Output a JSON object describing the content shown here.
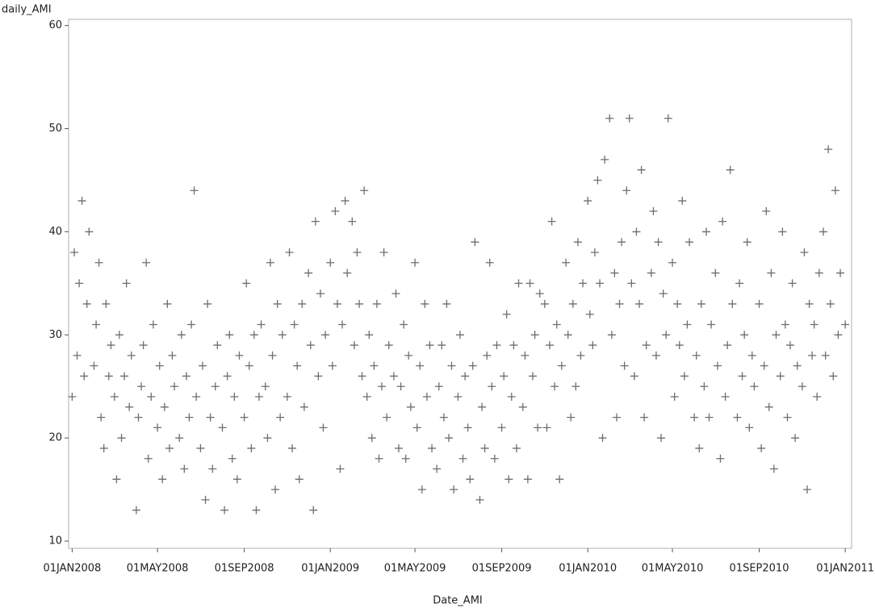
{
  "chart_data": {
    "type": "scatter",
    "ylabel": "daily_AMI",
    "xlabel": "Date_AMI",
    "color": "#6e6e6e",
    "marker": "plus",
    "xlim": [
      "2007-12-27",
      "2011-01-10"
    ],
    "xticks": [
      {
        "value": "2008-01-01",
        "label": "01JAN2008"
      },
      {
        "value": "2008-05-01",
        "label": "01MAY2008"
      },
      {
        "value": "2008-09-01",
        "label": "01SEP2008"
      },
      {
        "value": "2009-01-01",
        "label": "01JAN2009"
      },
      {
        "value": "2009-05-01",
        "label": "01MAY2009"
      },
      {
        "value": "2009-09-01",
        "label": "01SEP2009"
      },
      {
        "value": "2010-01-01",
        "label": "01JAN2010"
      },
      {
        "value": "2010-05-01",
        "label": "01MAY2010"
      },
      {
        "value": "2010-09-01",
        "label": "01SEP2010"
      },
      {
        "value": "2011-01-01",
        "label": "01JAN2011"
      }
    ],
    "ylim": [
      9.3,
      60.6
    ],
    "yticks": [
      10,
      20,
      30,
      40,
      50,
      60
    ],
    "x": [
      "2008-01-01",
      "2008-01-04",
      "2008-01-08",
      "2008-01-11",
      "2008-01-15",
      "2008-01-18",
      "2008-01-22",
      "2008-01-25",
      "2008-02-01",
      "2008-02-04",
      "2008-02-08",
      "2008-02-11",
      "2008-02-15",
      "2008-02-18",
      "2008-02-22",
      "2008-02-25",
      "2008-03-01",
      "2008-03-04",
      "2008-03-08",
      "2008-03-11",
      "2008-03-15",
      "2008-03-18",
      "2008-03-22",
      "2008-03-25",
      "2008-04-01",
      "2008-04-04",
      "2008-04-08",
      "2008-04-11",
      "2008-04-15",
      "2008-04-18",
      "2008-04-22",
      "2008-04-25",
      "2008-05-01",
      "2008-05-04",
      "2008-05-08",
      "2008-05-11",
      "2008-05-15",
      "2008-05-18",
      "2008-05-22",
      "2008-05-25",
      "2008-06-01",
      "2008-06-04",
      "2008-06-08",
      "2008-06-11",
      "2008-06-15",
      "2008-06-18",
      "2008-06-22",
      "2008-06-25",
      "2008-07-01",
      "2008-07-04",
      "2008-07-08",
      "2008-07-11",
      "2008-07-15",
      "2008-07-18",
      "2008-07-22",
      "2008-07-25",
      "2008-08-01",
      "2008-08-04",
      "2008-08-08",
      "2008-08-11",
      "2008-08-15",
      "2008-08-18",
      "2008-08-22",
      "2008-08-25",
      "2008-09-01",
      "2008-09-04",
      "2008-09-08",
      "2008-09-11",
      "2008-09-15",
      "2008-09-18",
      "2008-09-22",
      "2008-09-25",
      "2008-10-01",
      "2008-10-04",
      "2008-10-08",
      "2008-10-11",
      "2008-10-15",
      "2008-10-18",
      "2008-10-22",
      "2008-10-25",
      "2008-11-01",
      "2008-11-04",
      "2008-11-08",
      "2008-11-11",
      "2008-11-15",
      "2008-11-18",
      "2008-11-22",
      "2008-11-25",
      "2008-12-01",
      "2008-12-04",
      "2008-12-08",
      "2008-12-11",
      "2008-12-15",
      "2008-12-18",
      "2008-12-22",
      "2008-12-25",
      "2009-01-01",
      "2009-01-04",
      "2009-01-08",
      "2009-01-11",
      "2009-01-15",
      "2009-01-18",
      "2009-01-22",
      "2009-01-25",
      "2009-02-01",
      "2009-02-04",
      "2009-02-08",
      "2009-02-11",
      "2009-02-15",
      "2009-02-18",
      "2009-02-22",
      "2009-02-25",
      "2009-03-01",
      "2009-03-04",
      "2009-03-08",
      "2009-03-11",
      "2009-03-15",
      "2009-03-18",
      "2009-03-22",
      "2009-03-25",
      "2009-04-01",
      "2009-04-04",
      "2009-04-08",
      "2009-04-11",
      "2009-04-15",
      "2009-04-18",
      "2009-04-22",
      "2009-04-25",
      "2009-05-01",
      "2009-05-04",
      "2009-05-08",
      "2009-05-11",
      "2009-05-15",
      "2009-05-18",
      "2009-05-22",
      "2009-05-25",
      "2009-06-01",
      "2009-06-04",
      "2009-06-08",
      "2009-06-11",
      "2009-06-15",
      "2009-06-18",
      "2009-06-22",
      "2009-06-25",
      "2009-07-01",
      "2009-07-04",
      "2009-07-08",
      "2009-07-11",
      "2009-07-15",
      "2009-07-18",
      "2009-07-22",
      "2009-07-25",
      "2009-08-01",
      "2009-08-04",
      "2009-08-08",
      "2009-08-11",
      "2009-08-15",
      "2009-08-18",
      "2009-08-22",
      "2009-08-25",
      "2009-09-01",
      "2009-09-04",
      "2009-09-08",
      "2009-09-11",
      "2009-09-15",
      "2009-09-18",
      "2009-09-22",
      "2009-09-25",
      "2009-10-01",
      "2009-10-04",
      "2009-10-08",
      "2009-10-11",
      "2009-10-15",
      "2009-10-18",
      "2009-10-22",
      "2009-10-25",
      "2009-11-01",
      "2009-11-04",
      "2009-11-08",
      "2009-11-11",
      "2009-11-15",
      "2009-11-18",
      "2009-11-22",
      "2009-11-25",
      "2009-12-01",
      "2009-12-04",
      "2009-12-08",
      "2009-12-11",
      "2009-12-15",
      "2009-12-18",
      "2009-12-22",
      "2009-12-25",
      "2010-01-01",
      "2010-01-04",
      "2010-01-08",
      "2010-01-11",
      "2010-01-15",
      "2010-01-18",
      "2010-01-22",
      "2010-01-25",
      "2010-02-01",
      "2010-02-04",
      "2010-02-08",
      "2010-02-11",
      "2010-02-15",
      "2010-02-18",
      "2010-02-22",
      "2010-02-25",
      "2010-03-01",
      "2010-03-04",
      "2010-03-08",
      "2010-03-11",
      "2010-03-15",
      "2010-03-18",
      "2010-03-22",
      "2010-03-25",
      "2010-04-01",
      "2010-04-04",
      "2010-04-08",
      "2010-04-11",
      "2010-04-15",
      "2010-04-18",
      "2010-04-22",
      "2010-04-25",
      "2010-05-01",
      "2010-05-04",
      "2010-05-08",
      "2010-05-11",
      "2010-05-15",
      "2010-05-18",
      "2010-05-22",
      "2010-05-25",
      "2010-06-01",
      "2010-06-04",
      "2010-06-08",
      "2010-06-11",
      "2010-06-15",
      "2010-06-18",
      "2010-06-22",
      "2010-06-25",
      "2010-07-01",
      "2010-07-04",
      "2010-07-08",
      "2010-07-11",
      "2010-07-15",
      "2010-07-18",
      "2010-07-22",
      "2010-07-25",
      "2010-08-01",
      "2010-08-04",
      "2010-08-08",
      "2010-08-11",
      "2010-08-15",
      "2010-08-18",
      "2010-08-22",
      "2010-08-25",
      "2010-09-01",
      "2010-09-04",
      "2010-09-08",
      "2010-09-11",
      "2010-09-15",
      "2010-09-18",
      "2010-09-22",
      "2010-09-25",
      "2010-10-01",
      "2010-10-04",
      "2010-10-08",
      "2010-10-11",
      "2010-10-15",
      "2010-10-18",
      "2010-10-22",
      "2010-10-25",
      "2010-11-01",
      "2010-11-04",
      "2010-11-08",
      "2010-11-11",
      "2010-11-15",
      "2010-11-18",
      "2010-11-22",
      "2010-11-25",
      "2010-12-01",
      "2010-12-04",
      "2010-12-08",
      "2010-12-11",
      "2010-12-15",
      "2010-12-18",
      "2010-12-22",
      "2010-12-25",
      "2011-01-01"
    ],
    "values": [
      24,
      38,
      28,
      35,
      43,
      26,
      33,
      40,
      27,
      31,
      37,
      22,
      19,
      33,
      26,
      29,
      24,
      16,
      30,
      20,
      26,
      35,
      23,
      28,
      13,
      22,
      25,
      29,
      37,
      18,
      24,
      31,
      21,
      27,
      16,
      23,
      33,
      19,
      28,
      25,
      20,
      30,
      17,
      26,
      22,
      31,
      44,
      24,
      19,
      27,
      14,
      33,
      22,
      17,
      25,
      29,
      21,
      13,
      26,
      30,
      18,
      24,
      16,
      28,
      22,
      35,
      27,
      19,
      30,
      13,
      24,
      31,
      25,
      20,
      37,
      28,
      15,
      33,
      22,
      30,
      24,
      38,
      19,
      31,
      27,
      16,
      33,
      23,
      36,
      29,
      13,
      41,
      26,
      34,
      21,
      30,
      37,
      27,
      42,
      33,
      17,
      31,
      43,
      36,
      41,
      29,
      38,
      33,
      26,
      44,
      24,
      30,
      20,
      27,
      33,
      18,
      25,
      38,
      22,
      29,
      26,
      34,
      19,
      25,
      31,
      18,
      28,
      23,
      37,
      21,
      27,
      15,
      33,
      24,
      29,
      19,
      17,
      25,
      29,
      22,
      33,
      20,
      27,
      15,
      24,
      30,
      18,
      26,
      21,
      16,
      27,
      39,
      14,
      23,
      19,
      28,
      37,
      25,
      18,
      29,
      21,
      26,
      32,
      16,
      24,
      29,
      19,
      35,
      23,
      28,
      16,
      35,
      26,
      30,
      21,
      34,
      33,
      21,
      29,
      41,
      25,
      31,
      16,
      27,
      37,
      30,
      22,
      33,
      25,
      39,
      28,
      35,
      43,
      32,
      29,
      38,
      45,
      35,
      20,
      47,
      51,
      30,
      36,
      22,
      33,
      39,
      27,
      44,
      51,
      35,
      26,
      40,
      33,
      46,
      22,
      29,
      36,
      42,
      28,
      39,
      20,
      34,
      30,
      51,
      37,
      24,
      33,
      29,
      43,
      26,
      31,
      39,
      22,
      28,
      19,
      33,
      25,
      40,
      22,
      31,
      36,
      27,
      18,
      41,
      24,
      29,
      46,
      33,
      22,
      35,
      26,
      30,
      39,
      21,
      28,
      25,
      33,
      19,
      27,
      42,
      23,
      36,
      17,
      30,
      26,
      40,
      31,
      22,
      29,
      35,
      20,
      27,
      25,
      38,
      15,
      33,
      28,
      31,
      24,
      36,
      40,
      28,
      48,
      33,
      26,
      44,
      30,
      36,
      31
    ]
  }
}
